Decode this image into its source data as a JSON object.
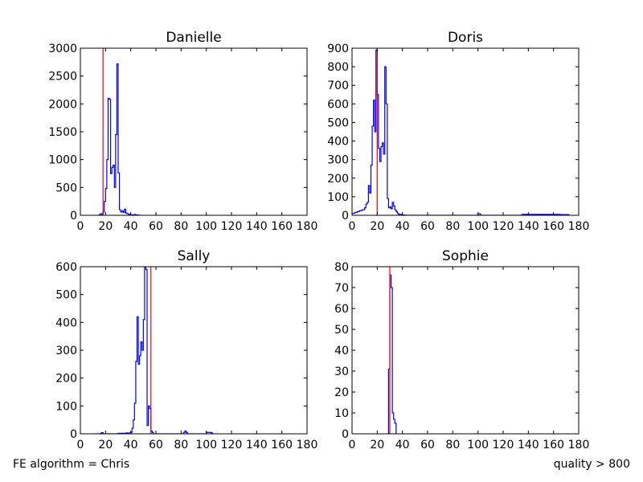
{
  "footer": {
    "left": "FE algorithm = Chris",
    "right": "quality > 800"
  },
  "colors": {
    "series": "#0000ff",
    "marker": "#ff0000",
    "axes": "#000000"
  },
  "chart_data": [
    {
      "type": "line",
      "style": "step-histogram",
      "title": "Danielle",
      "xlim": [
        0,
        180
      ],
      "ylim": [
        0,
        3000
      ],
      "xticks": [
        0,
        20,
        40,
        60,
        80,
        100,
        120,
        140,
        160,
        180
      ],
      "yticks": [
        0,
        500,
        1000,
        1500,
        2000,
        2500,
        3000
      ],
      "vline": 18,
      "series": [
        {
          "x": [
            14,
            15,
            16,
            17,
            18,
            19,
            20,
            21,
            22,
            23,
            24,
            25,
            26,
            27,
            28,
            29,
            30,
            31,
            32,
            33,
            34,
            35,
            36,
            37,
            38,
            39,
            40,
            41,
            42,
            43,
            44,
            45,
            46,
            47
          ],
          "y": [
            0,
            10,
            30,
            20,
            60,
            250,
            480,
            1000,
            2100,
            2080,
            750,
            860,
            900,
            500,
            1450,
            2720,
            760,
            100,
            60,
            80,
            50,
            110,
            40,
            30,
            20,
            10,
            5,
            10,
            5,
            15,
            5,
            5,
            0,
            0
          ]
        }
      ]
    },
    {
      "type": "line",
      "style": "step-histogram",
      "title": "Doris",
      "xlim": [
        0,
        180
      ],
      "ylim": [
        0,
        900
      ],
      "xticks": [
        0,
        20,
        40,
        60,
        80,
        100,
        120,
        140,
        160,
        180
      ],
      "yticks": [
        0,
        100,
        200,
        300,
        400,
        500,
        600,
        700,
        800,
        900
      ],
      "vline": 20,
      "series": [
        {
          "x": [
            0,
            2,
            4,
            6,
            8,
            10,
            11,
            12,
            13,
            14,
            15,
            16,
            17,
            18,
            19,
            20,
            21,
            22,
            23,
            24,
            25,
            26,
            27,
            28,
            29,
            30,
            31,
            32,
            33,
            34,
            35,
            36,
            37,
            38,
            39,
            40,
            41,
            42,
            44,
            46,
            50,
            60,
            100,
            102,
            135,
            150,
            165,
            172
          ],
          "y": [
            10,
            15,
            20,
            25,
            30,
            40,
            60,
            70,
            160,
            120,
            270,
            480,
            620,
            450,
            890,
            650,
            360,
            290,
            370,
            390,
            330,
            800,
            600,
            90,
            40,
            45,
            35,
            70,
            50,
            30,
            20,
            10,
            5,
            5,
            3,
            2,
            2,
            0,
            0,
            0,
            0,
            0,
            8,
            0,
            5,
            5,
            4,
            0
          ]
        }
      ]
    },
    {
      "type": "line",
      "style": "step-histogram",
      "title": "Sally",
      "xlim": [
        0,
        180
      ],
      "ylim": [
        0,
        600
      ],
      "xticks": [
        0,
        20,
        40,
        60,
        80,
        100,
        120,
        140,
        160,
        180
      ],
      "yticks": [
        0,
        100,
        200,
        300,
        400,
        500,
        600
      ],
      "vline": 56,
      "series": [
        {
          "x": [
            12,
            16,
            17,
            18,
            30,
            36,
            40,
            41,
            42,
            43,
            44,
            45,
            46,
            47,
            48,
            49,
            50,
            51,
            52,
            53,
            54,
            55,
            56,
            57,
            58,
            60,
            82,
            83,
            84,
            85,
            100,
            104,
            105
          ],
          "y": [
            0,
            2,
            4,
            0,
            2,
            3,
            5,
            20,
            50,
            110,
            260,
            420,
            250,
            280,
            330,
            300,
            410,
            600,
            590,
            30,
            100,
            90,
            10,
            5,
            0,
            0,
            5,
            10,
            5,
            0,
            5,
            3,
            0
          ]
        }
      ]
    },
    {
      "type": "line",
      "style": "step-histogram",
      "title": "Sophie",
      "xlim": [
        0,
        180
      ],
      "ylim": [
        0,
        80
      ],
      "xticks": [
        0,
        20,
        40,
        60,
        80,
        100,
        120,
        140,
        160,
        180
      ],
      "yticks": [
        0,
        10,
        20,
        30,
        40,
        50,
        60,
        70,
        80
      ],
      "vline": 30,
      "series": [
        {
          "x": [
            28,
            29,
            30,
            31,
            32,
            33,
            34,
            35
          ],
          "y": [
            0,
            31,
            76,
            70,
            10,
            7,
            5,
            0
          ]
        }
      ]
    }
  ]
}
